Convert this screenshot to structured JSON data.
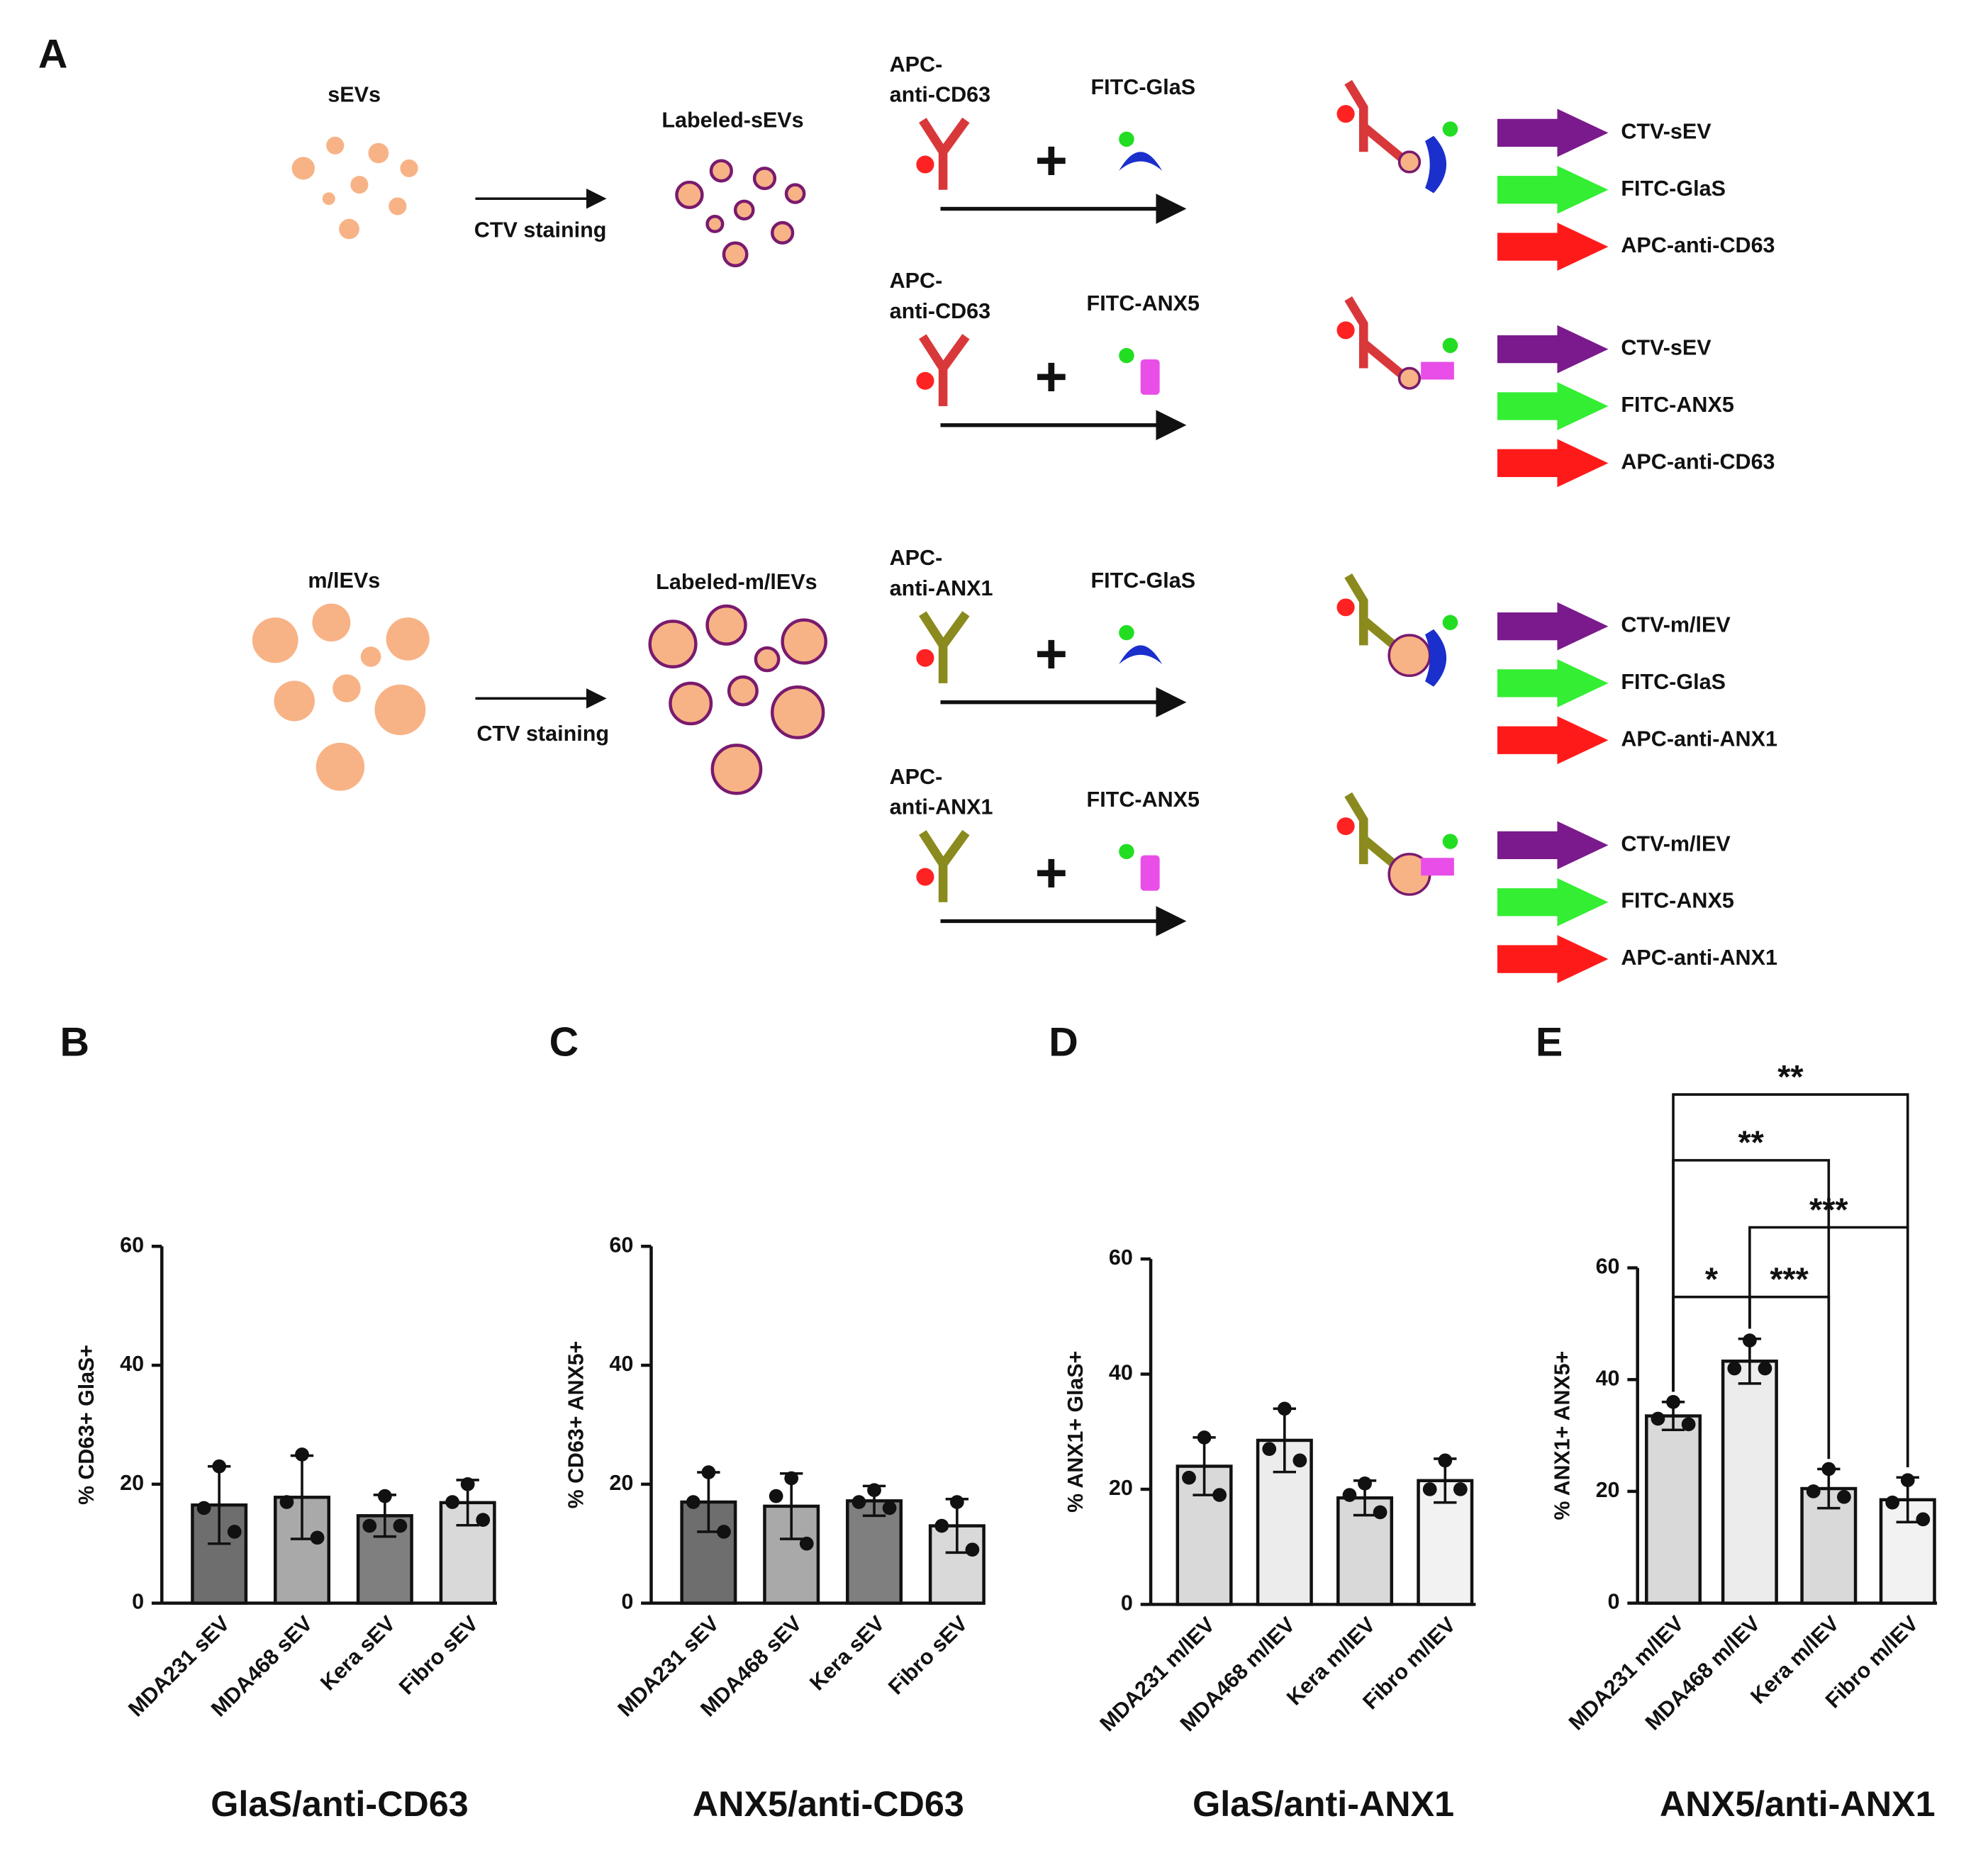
{
  "diagram": {
    "panel": "A",
    "sevs": "sEVs",
    "labeled_sevs": "Labeled-sEVs",
    "ctv_staining_1": "CTV staining",
    "mlevs": "m/lEVs",
    "labeled_mlevs": "Labeled-m/lEVs",
    "ctv_staining_2": "CTV staining",
    "reactions": [
      {
        "antibody_lines": [
          "APC-",
          "anti-CD63"
        ],
        "antibody_color": "#d9383a",
        "probe": "FITC-GlaS",
        "outputs": [
          "CTV-sEV",
          "FITC-GlaS",
          "APC-anti-CD63"
        ]
      },
      {
        "antibody_lines": [
          "APC-",
          "anti-CD63"
        ],
        "antibody_color": "#d9383a",
        "probe": "FITC-ANX5",
        "outputs": [
          "CTV-sEV",
          "FITC-ANX5",
          "APC-anti-CD63"
        ]
      },
      {
        "antibody_lines": [
          "APC-",
          "anti-ANX1"
        ],
        "antibody_color": "#8a8a1e",
        "probe": "FITC-GlaS",
        "outputs": [
          "CTV-m/lEV",
          "FITC-GlaS",
          "APC-anti-ANX1"
        ]
      },
      {
        "antibody_lines": [
          "APC-",
          "anti-ANX1"
        ],
        "antibody_color": "#8a8a1e",
        "probe": "FITC-ANX5",
        "outputs": [
          "CTV-m/lEV",
          "FITC-ANX5",
          "APC-anti-ANX1"
        ]
      }
    ],
    "output_colors": [
      "#7a1a8c",
      "#33ee33",
      "#ff1a1a"
    ]
  },
  "chart_data": [
    {
      "type": "bar",
      "panel": "B",
      "title": "GlaS/anti-CD63",
      "y_label": "% CD63+ GlaS+",
      "categories": [
        "MDA231 sEV",
        "MDA468 sEV",
        "Kera sEV",
        "Fibro sEV"
      ],
      "values": [
        16.5,
        17.8,
        14.7,
        16.9
      ],
      "errors": [
        6.5,
        7,
        3.5,
        3.8
      ],
      "points": [
        [
          23,
          16,
          12
        ],
        [
          25,
          17,
          11
        ],
        [
          18,
          13,
          13
        ],
        [
          20,
          17,
          14
        ]
      ],
      "colors": [
        "#6e6e6e",
        "#a9a9a9",
        "#7f7f7f",
        "#d9d9d9"
      ],
      "ylim": [
        0,
        60
      ],
      "yticks": [
        0,
        20,
        40,
        60
      ]
    },
    {
      "type": "bar",
      "panel": "C",
      "title": "ANX5/anti-CD63",
      "y_label": "% CD63+ ANX5+",
      "categories": [
        "MDA231 sEV",
        "MDA468 sEV",
        "Kera sEV",
        "Fibro sEV"
      ],
      "values": [
        17,
        16.3,
        17.2,
        13
      ],
      "errors": [
        5,
        5.5,
        2.5,
        4.5
      ],
      "points": [
        [
          22,
          17,
          12
        ],
        [
          21,
          18,
          10
        ],
        [
          19,
          17,
          16
        ],
        [
          17,
          13,
          9
        ]
      ],
      "colors": [
        "#6e6e6e",
        "#a9a9a9",
        "#7f7f7f",
        "#d9d9d9"
      ],
      "ylim": [
        0,
        60
      ],
      "yticks": [
        0,
        20,
        40,
        60
      ]
    },
    {
      "type": "bar",
      "panel": "D",
      "title": "GlaS/anti-ANX1",
      "y_label": "% ANX1+ GlaS+",
      "categories": [
        "MDA231 m/lEV",
        "MDA468 m/lEV",
        "Kera m/lEV",
        "Fibro m/lEV"
      ],
      "values": [
        24,
        28.5,
        18.5,
        21.5
      ],
      "errors": [
        5,
        5.5,
        3,
        3.8
      ],
      "points": [
        [
          29,
          22,
          19
        ],
        [
          34,
          27,
          25
        ],
        [
          21,
          19,
          16
        ],
        [
          25,
          20,
          20
        ]
      ],
      "colors": [
        "#d9d9d9",
        "#ececec",
        "#d9d9d9",
        "#f2f2f2"
      ],
      "ylim": [
        0,
        60
      ],
      "yticks": [
        0,
        20,
        40,
        60
      ]
    },
    {
      "type": "bar",
      "panel": "E",
      "title": "ANX5/anti-ANX1",
      "y_label": "% ANX1+ ANX5+",
      "categories": [
        "MDA231 m/lEV",
        "MDA468 m/lEV",
        "Kera m/lEV",
        "Fibro m/lEV"
      ],
      "values": [
        33.5,
        43.3,
        20.5,
        18.5
      ],
      "errors": [
        2.5,
        4,
        3.5,
        4
      ],
      "points": [
        [
          36,
          33,
          32
        ],
        [
          47,
          42,
          42
        ],
        [
          24,
          20,
          19
        ],
        [
          22,
          18,
          15
        ]
      ],
      "colors": [
        "#d9d9d9",
        "#ececec",
        "#d9d9d9",
        "#f2f2f2"
      ],
      "ylim": [
        0,
        60
      ],
      "yticks": [
        0,
        20,
        40,
        60
      ],
      "annotations": [
        {
          "between": [
            "MDA231 m/lEV",
            "MDA468 m/lEV"
          ],
          "label": "*"
        },
        {
          "between": [
            "MDA468 m/lEV",
            "Kera m/lEV"
          ],
          "label": "***"
        },
        {
          "between": [
            "MDA468 m/lEV",
            "Fibro m/lEV"
          ],
          "label": "***"
        },
        {
          "between": [
            "MDA231 m/lEV",
            "Kera m/lEV"
          ],
          "label": "**"
        },
        {
          "between": [
            "MDA231 m/lEV",
            "Fibro m/lEV"
          ],
          "label": "**"
        }
      ]
    }
  ]
}
